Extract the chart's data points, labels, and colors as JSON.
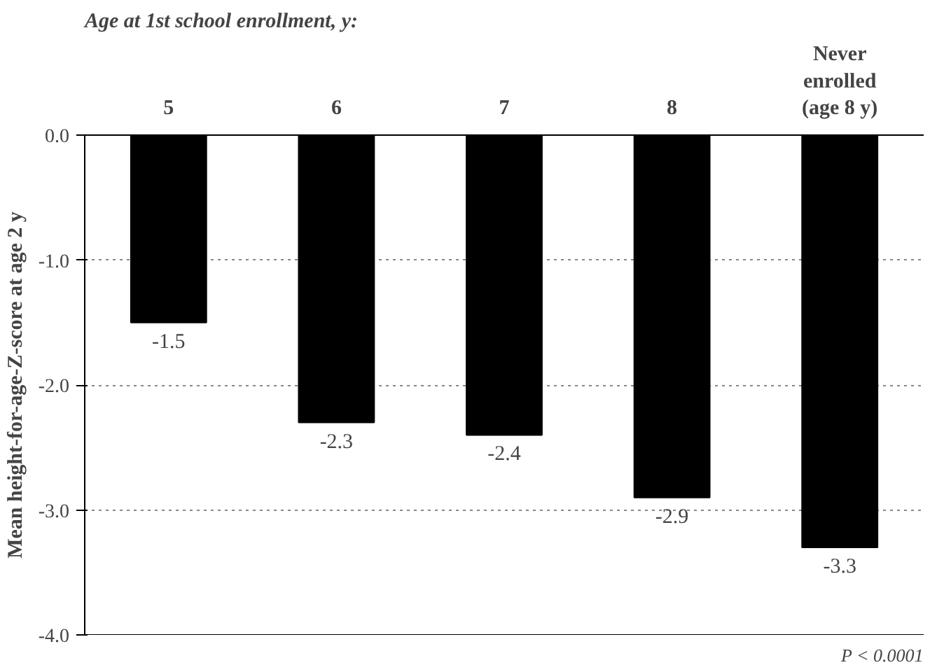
{
  "chart_data": {
    "type": "bar",
    "title": "Age at 1st school enrollment, y:",
    "ylabel": "Mean height-for-age-Z-score at age 2 y",
    "categories": [
      "5",
      "6",
      "7",
      "8",
      "Never enrolled (age 8 y)"
    ],
    "values": [
      -1.5,
      -2.3,
      -2.4,
      -2.9,
      -3.3
    ],
    "color": "#000000",
    "data_labels": true,
    "ylim": [
      -4,
      0
    ],
    "yticks": [
      {
        "value": 0,
        "label": "0.0"
      },
      {
        "value": -1,
        "label": "-1.0"
      },
      {
        "value": -2,
        "label": "-2.0"
      },
      {
        "value": -3,
        "label": "-3.0"
      },
      {
        "value": -4,
        "label": "-4.0"
      }
    ],
    "grid": "y",
    "annotations": [
      "P < 0.0001"
    ]
  }
}
